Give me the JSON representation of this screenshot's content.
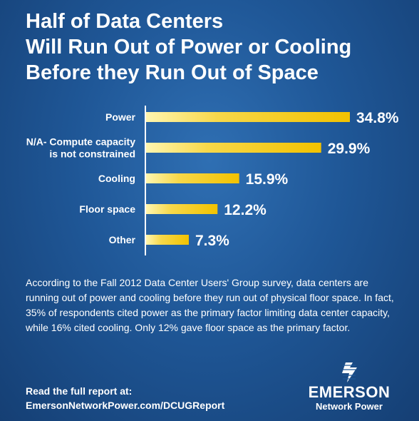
{
  "title_lines": [
    "Half of Data Centers",
    "Will Run Out of Power or Cooling",
    "Before they Run Out of Space"
  ],
  "chart_data": {
    "type": "bar",
    "orientation": "horizontal",
    "categories": [
      [
        "Power"
      ],
      [
        "N/A- Compute capacity",
        "is not constrained"
      ],
      [
        "Cooling"
      ],
      [
        "Floor space"
      ],
      [
        "Other"
      ]
    ],
    "values": [
      34.8,
      29.9,
      15.9,
      12.2,
      7.3
    ],
    "value_labels": [
      "34.8%",
      "29.9%",
      "15.9%",
      "12.2%",
      "7.3%"
    ],
    "xlim": [
      0,
      34.8
    ],
    "grid": false,
    "legend": "none",
    "colors": {
      "bar_light": "#fff6b0",
      "bar_dark": "#f2c200",
      "axis": "#ffffff"
    }
  },
  "description": "According to the Fall 2012 Data Center Users' Group survey, data centers are running out of power and cooling before they run out of physical floor space. In fact, 35% of respondents cited power as the primary factor limiting data center capacity, while 16% cited cooling. Only 12% gave floor space as the primary factor.",
  "footer": {
    "line1": "Read the full report at:",
    "line2": "EmersonNetworkPower.com/DCUGReport"
  },
  "brand": {
    "name": "EMERSON",
    "sub": "Network Power",
    "icon": "emerson-logo-icon"
  }
}
